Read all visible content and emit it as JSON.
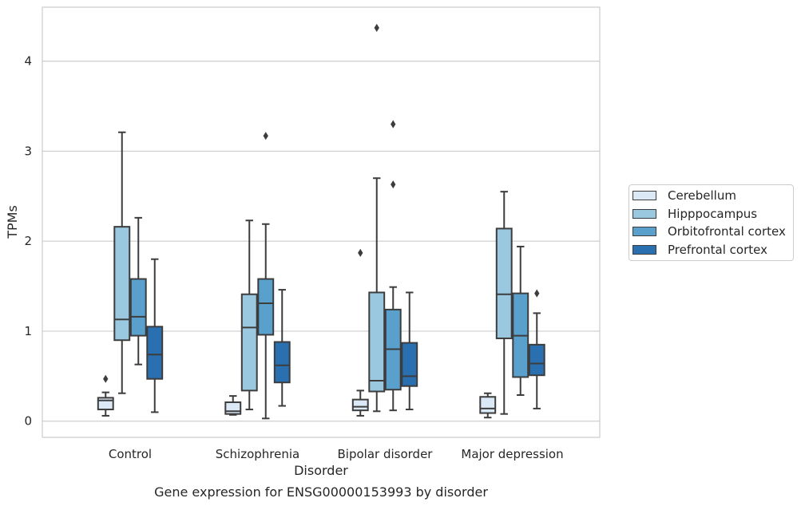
{
  "chart_data": {
    "type": "box",
    "categories": [
      "Control",
      "Schizophrenia",
      "Bipolar disorder",
      "Major depression"
    ],
    "xlabel": "Disorder",
    "ylabel": "TPMs",
    "ylim": [
      -0.18,
      4.6
    ],
    "yticks": [
      0,
      1,
      2,
      3,
      4
    ],
    "grid": "horizontal",
    "legend_position": "right",
    "series": [
      {
        "name": "Cerebellum",
        "color": "#dbe9f6",
        "boxes": [
          {
            "whisker_low": 0.06,
            "q1": 0.13,
            "median": 0.23,
            "q3": 0.26,
            "whisker_high": 0.32,
            "outliers": [
              0.47
            ]
          },
          {
            "whisker_low": 0.07,
            "q1": 0.08,
            "median": 0.11,
            "q3": 0.21,
            "whisker_high": 0.28,
            "outliers": []
          },
          {
            "whisker_low": 0.06,
            "q1": 0.12,
            "median": 0.16,
            "q3": 0.24,
            "whisker_high": 0.34,
            "outliers": [
              1.87
            ]
          },
          {
            "whisker_low": 0.04,
            "q1": 0.09,
            "median": 0.14,
            "q3": 0.27,
            "whisker_high": 0.31,
            "outliers": []
          }
        ]
      },
      {
        "name": "Hipppocampus",
        "color": "#9ac8e0",
        "boxes": [
          {
            "whisker_low": 0.31,
            "q1": 0.9,
            "median": 1.13,
            "q3": 2.16,
            "whisker_high": 3.21,
            "outliers": []
          },
          {
            "whisker_low": 0.13,
            "q1": 0.34,
            "median": 1.04,
            "q3": 1.41,
            "whisker_high": 2.23,
            "outliers": []
          },
          {
            "whisker_low": 0.11,
            "q1": 0.33,
            "median": 0.45,
            "q3": 1.43,
            "whisker_high": 2.7,
            "outliers": [
              4.37
            ]
          },
          {
            "whisker_low": 0.08,
            "q1": 0.92,
            "median": 1.41,
            "q3": 2.14,
            "whisker_high": 2.55,
            "outliers": []
          }
        ]
      },
      {
        "name": "Orbitofrontal cortex",
        "color": "#5aa0cd",
        "boxes": [
          {
            "whisker_low": 0.63,
            "q1": 0.95,
            "median": 1.16,
            "q3": 1.58,
            "whisker_high": 2.26,
            "outliers": []
          },
          {
            "whisker_low": 0.03,
            "q1": 0.96,
            "median": 1.31,
            "q3": 1.58,
            "whisker_high": 2.19,
            "outliers": [
              3.17
            ]
          },
          {
            "whisker_low": 0.12,
            "q1": 0.35,
            "median": 0.8,
            "q3": 1.24,
            "whisker_high": 1.49,
            "outliers": [
              2.63,
              3.3
            ]
          },
          {
            "whisker_low": 0.29,
            "q1": 0.49,
            "median": 0.95,
            "q3": 1.42,
            "whisker_high": 1.94,
            "outliers": []
          }
        ]
      },
      {
        "name": "Prefrontal cortex",
        "color": "#2a6fb0",
        "boxes": [
          {
            "whisker_low": 0.1,
            "q1": 0.47,
            "median": 0.74,
            "q3": 1.05,
            "whisker_high": 1.8,
            "outliers": []
          },
          {
            "whisker_low": 0.17,
            "q1": 0.43,
            "median": 0.62,
            "q3": 0.88,
            "whisker_high": 1.46,
            "outliers": []
          },
          {
            "whisker_low": 0.13,
            "q1": 0.39,
            "median": 0.5,
            "q3": 0.87,
            "whisker_high": 1.43,
            "outliers": []
          },
          {
            "whisker_low": 0.14,
            "q1": 0.51,
            "median": 0.64,
            "q3": 0.85,
            "whisker_high": 1.2,
            "outliers": [
              1.42
            ]
          }
        ]
      }
    ]
  },
  "caption": "Gene expression for ENSG00000153993 by disorder"
}
